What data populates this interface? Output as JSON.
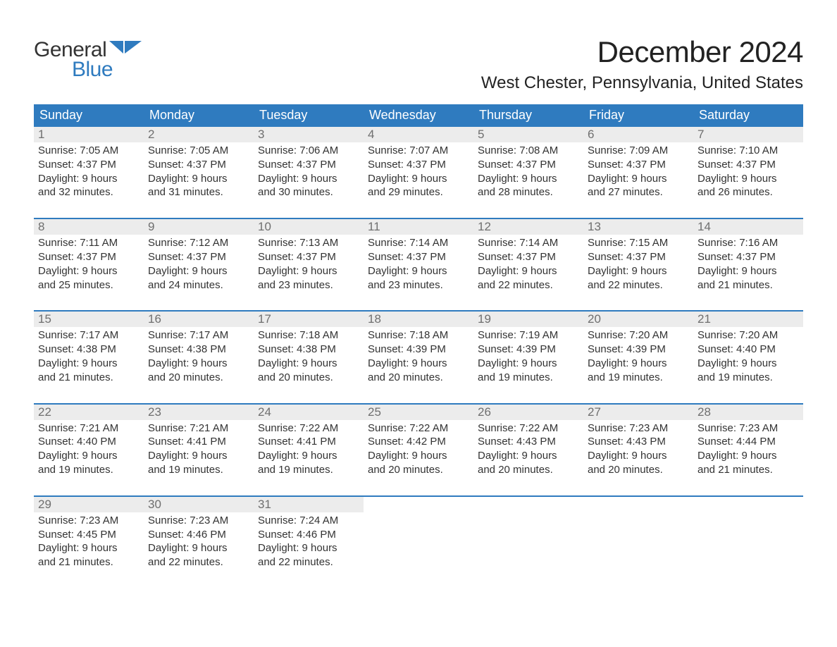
{
  "logo": {
    "word1": "General",
    "word2": "Blue"
  },
  "title": "December 2024",
  "location": "West Chester, Pennsylvania, United States",
  "colors": {
    "header_bg": "#2f7bbf",
    "header_text": "#ffffff",
    "daynum_bg": "#ececec",
    "daynum_text": "#6f6f6f",
    "row_border": "#2f7bbf",
    "body_text": "#333333",
    "logo_blue": "#2f7bbf"
  },
  "weekdays": [
    "Sunday",
    "Monday",
    "Tuesday",
    "Wednesday",
    "Thursday",
    "Friday",
    "Saturday"
  ],
  "weeks": [
    [
      {
        "n": "1",
        "sunrise": "Sunrise: 7:05 AM",
        "sunset": "Sunset: 4:37 PM",
        "d1": "Daylight: 9 hours",
        "d2": "and 32 minutes."
      },
      {
        "n": "2",
        "sunrise": "Sunrise: 7:05 AM",
        "sunset": "Sunset: 4:37 PM",
        "d1": "Daylight: 9 hours",
        "d2": "and 31 minutes."
      },
      {
        "n": "3",
        "sunrise": "Sunrise: 7:06 AM",
        "sunset": "Sunset: 4:37 PM",
        "d1": "Daylight: 9 hours",
        "d2": "and 30 minutes."
      },
      {
        "n": "4",
        "sunrise": "Sunrise: 7:07 AM",
        "sunset": "Sunset: 4:37 PM",
        "d1": "Daylight: 9 hours",
        "d2": "and 29 minutes."
      },
      {
        "n": "5",
        "sunrise": "Sunrise: 7:08 AM",
        "sunset": "Sunset: 4:37 PM",
        "d1": "Daylight: 9 hours",
        "d2": "and 28 minutes."
      },
      {
        "n": "6",
        "sunrise": "Sunrise: 7:09 AM",
        "sunset": "Sunset: 4:37 PM",
        "d1": "Daylight: 9 hours",
        "d2": "and 27 minutes."
      },
      {
        "n": "7",
        "sunrise": "Sunrise: 7:10 AM",
        "sunset": "Sunset: 4:37 PM",
        "d1": "Daylight: 9 hours",
        "d2": "and 26 minutes."
      }
    ],
    [
      {
        "n": "8",
        "sunrise": "Sunrise: 7:11 AM",
        "sunset": "Sunset: 4:37 PM",
        "d1": "Daylight: 9 hours",
        "d2": "and 25 minutes."
      },
      {
        "n": "9",
        "sunrise": "Sunrise: 7:12 AM",
        "sunset": "Sunset: 4:37 PM",
        "d1": "Daylight: 9 hours",
        "d2": "and 24 minutes."
      },
      {
        "n": "10",
        "sunrise": "Sunrise: 7:13 AM",
        "sunset": "Sunset: 4:37 PM",
        "d1": "Daylight: 9 hours",
        "d2": "and 23 minutes."
      },
      {
        "n": "11",
        "sunrise": "Sunrise: 7:14 AM",
        "sunset": "Sunset: 4:37 PM",
        "d1": "Daylight: 9 hours",
        "d2": "and 23 minutes."
      },
      {
        "n": "12",
        "sunrise": "Sunrise: 7:14 AM",
        "sunset": "Sunset: 4:37 PM",
        "d1": "Daylight: 9 hours",
        "d2": "and 22 minutes."
      },
      {
        "n": "13",
        "sunrise": "Sunrise: 7:15 AM",
        "sunset": "Sunset: 4:37 PM",
        "d1": "Daylight: 9 hours",
        "d2": "and 22 minutes."
      },
      {
        "n": "14",
        "sunrise": "Sunrise: 7:16 AM",
        "sunset": "Sunset: 4:37 PM",
        "d1": "Daylight: 9 hours",
        "d2": "and 21 minutes."
      }
    ],
    [
      {
        "n": "15",
        "sunrise": "Sunrise: 7:17 AM",
        "sunset": "Sunset: 4:38 PM",
        "d1": "Daylight: 9 hours",
        "d2": "and 21 minutes."
      },
      {
        "n": "16",
        "sunrise": "Sunrise: 7:17 AM",
        "sunset": "Sunset: 4:38 PM",
        "d1": "Daylight: 9 hours",
        "d2": "and 20 minutes."
      },
      {
        "n": "17",
        "sunrise": "Sunrise: 7:18 AM",
        "sunset": "Sunset: 4:38 PM",
        "d1": "Daylight: 9 hours",
        "d2": "and 20 minutes."
      },
      {
        "n": "18",
        "sunrise": "Sunrise: 7:18 AM",
        "sunset": "Sunset: 4:39 PM",
        "d1": "Daylight: 9 hours",
        "d2": "and 20 minutes."
      },
      {
        "n": "19",
        "sunrise": "Sunrise: 7:19 AM",
        "sunset": "Sunset: 4:39 PM",
        "d1": "Daylight: 9 hours",
        "d2": "and 19 minutes."
      },
      {
        "n": "20",
        "sunrise": "Sunrise: 7:20 AM",
        "sunset": "Sunset: 4:39 PM",
        "d1": "Daylight: 9 hours",
        "d2": "and 19 minutes."
      },
      {
        "n": "21",
        "sunrise": "Sunrise: 7:20 AM",
        "sunset": "Sunset: 4:40 PM",
        "d1": "Daylight: 9 hours",
        "d2": "and 19 minutes."
      }
    ],
    [
      {
        "n": "22",
        "sunrise": "Sunrise: 7:21 AM",
        "sunset": "Sunset: 4:40 PM",
        "d1": "Daylight: 9 hours",
        "d2": "and 19 minutes."
      },
      {
        "n": "23",
        "sunrise": "Sunrise: 7:21 AM",
        "sunset": "Sunset: 4:41 PM",
        "d1": "Daylight: 9 hours",
        "d2": "and 19 minutes."
      },
      {
        "n": "24",
        "sunrise": "Sunrise: 7:22 AM",
        "sunset": "Sunset: 4:41 PM",
        "d1": "Daylight: 9 hours",
        "d2": "and 19 minutes."
      },
      {
        "n": "25",
        "sunrise": "Sunrise: 7:22 AM",
        "sunset": "Sunset: 4:42 PM",
        "d1": "Daylight: 9 hours",
        "d2": "and 20 minutes."
      },
      {
        "n": "26",
        "sunrise": "Sunrise: 7:22 AM",
        "sunset": "Sunset: 4:43 PM",
        "d1": "Daylight: 9 hours",
        "d2": "and 20 minutes."
      },
      {
        "n": "27",
        "sunrise": "Sunrise: 7:23 AM",
        "sunset": "Sunset: 4:43 PM",
        "d1": "Daylight: 9 hours",
        "d2": "and 20 minutes."
      },
      {
        "n": "28",
        "sunrise": "Sunrise: 7:23 AM",
        "sunset": "Sunset: 4:44 PM",
        "d1": "Daylight: 9 hours",
        "d2": "and 21 minutes."
      }
    ],
    [
      {
        "n": "29",
        "sunrise": "Sunrise: 7:23 AM",
        "sunset": "Sunset: 4:45 PM",
        "d1": "Daylight: 9 hours",
        "d2": "and 21 minutes."
      },
      {
        "n": "30",
        "sunrise": "Sunrise: 7:23 AM",
        "sunset": "Sunset: 4:46 PM",
        "d1": "Daylight: 9 hours",
        "d2": "and 22 minutes."
      },
      {
        "n": "31",
        "sunrise": "Sunrise: 7:24 AM",
        "sunset": "Sunset: 4:46 PM",
        "d1": "Daylight: 9 hours",
        "d2": "and 22 minutes."
      },
      {
        "empty": true
      },
      {
        "empty": true
      },
      {
        "empty": true
      },
      {
        "empty": true
      }
    ]
  ]
}
